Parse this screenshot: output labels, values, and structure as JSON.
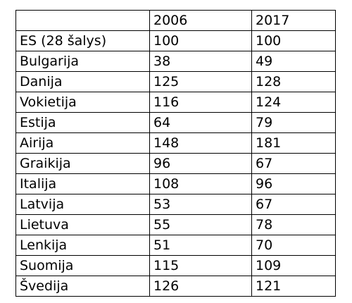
{
  "table": {
    "header": [
      "2006",
      "2017"
    ],
    "rows": [
      [
        "ES (28 šalys)",
        100,
        100
      ],
      [
        "Bulgarija",
        38,
        49
      ],
      [
        "Danija",
        125,
        128
      ],
      [
        "Vokietija",
        116,
        124
      ],
      [
        "Estija",
        64,
        79
      ],
      [
        "Airija",
        148,
        181
      ],
      [
        "Graikija",
        96,
        67
      ],
      [
        "Italija",
        108,
        96
      ],
      [
        "Latvija",
        53,
        67
      ],
      [
        "Lietuva",
        55,
        78
      ],
      [
        "Lenkija",
        51,
        70
      ],
      [
        "Suomija",
        115,
        109
      ],
      [
        "Švedija",
        126,
        121
      ]
    ]
  }
}
